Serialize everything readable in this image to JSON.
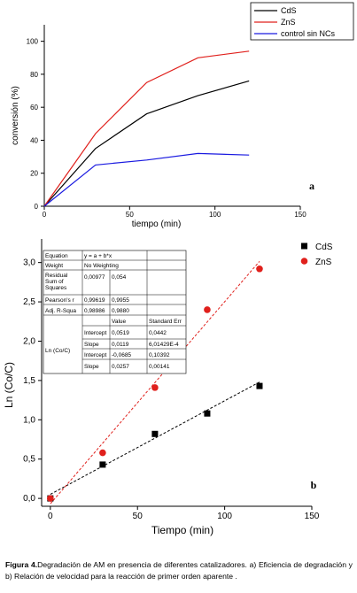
{
  "chart_data": [
    {
      "type": "line",
      "panel_label": "a",
      "xlabel": "tiempo (min)",
      "ylabel": "conversión (%)",
      "xlim": [
        0,
        150
      ],
      "ylim": [
        0,
        110
      ],
      "xticks": [
        0,
        50,
        100,
        150
      ],
      "yticks": [
        0,
        20,
        40,
        60,
        80,
        100
      ],
      "legend_position": "top-right",
      "series": [
        {
          "name": "CdS",
          "color": "#000000",
          "x": [
            0,
            30,
            60,
            90,
            120
          ],
          "y": [
            0,
            35,
            56,
            67,
            76
          ]
        },
        {
          "name": "ZnS",
          "color": "#e0201c",
          "x": [
            0,
            30,
            60,
            90,
            120
          ],
          "y": [
            0,
            44,
            75,
            90,
            94
          ]
        },
        {
          "name": "control sin NCs",
          "color": "#1a1ae0",
          "x": [
            0,
            30,
            60,
            90,
            120
          ],
          "y": [
            0,
            25,
            28,
            32,
            31
          ]
        }
      ]
    },
    {
      "type": "scatter",
      "panel_label": "b",
      "xlabel": "Tiempo (min)",
      "ylabel": "Ln (Co/C)",
      "xlim": [
        -5,
        150
      ],
      "ylim": [
        -0.1,
        3.3
      ],
      "xticks": [
        0,
        50,
        100,
        150
      ],
      "yticks": [
        "0,0",
        "0,5",
        "1,0",
        "1,5",
        "2,0",
        "2,5",
        "3,0"
      ],
      "ytick_values": [
        0,
        0.5,
        1.0,
        1.5,
        2.0,
        2.5,
        3.0
      ],
      "legend_position": "top-right",
      "series": [
        {
          "name": "CdS",
          "color": "#000000",
          "marker": "square",
          "x": [
            0,
            30,
            60,
            90,
            120
          ],
          "y": [
            0.0,
            0.43,
            0.82,
            1.08,
            1.43
          ]
        },
        {
          "name": "ZnS",
          "color": "#e0201c",
          "marker": "circle",
          "x": [
            0,
            30,
            60,
            90,
            120
          ],
          "y": [
            0.0,
            0.58,
            1.41,
            2.4,
            2.92
          ]
        }
      ],
      "fits": [
        {
          "series": "CdS",
          "intercept": 0.0519,
          "slope": 0.0119,
          "x": [
            0,
            120
          ],
          "color": "#000000"
        },
        {
          "series": "ZnS",
          "intercept": -0.0685,
          "slope": 0.0257,
          "x": [
            0,
            120
          ],
          "color": "#e0201c"
        }
      ],
      "fit_table": {
        "equation_label": "Equation",
        "equation": "y = a + b*x",
        "weight_label": "Weight",
        "weight": "No Weighting",
        "rss_label": [
          "Residual",
          "Sum of",
          "Squares"
        ],
        "rss": [
          "0,00977",
          "0,054"
        ],
        "pearson_label": "Pearson's r",
        "pearson": [
          "0,99619",
          "0,9955"
        ],
        "adjr_label": "Adj. R-Squa",
        "adjr": [
          "0,98986",
          "0,9880"
        ],
        "value_label": "Value",
        "stderr_label": "Standard Err",
        "group_label": "Ln (Co/C)",
        "rows": [
          {
            "param": "Intercept",
            "value": "0,0519",
            "err": "0,0442"
          },
          {
            "param": "Slope",
            "value": "0,0119",
            "err": "6,01429E-4"
          },
          {
            "param": "Intercept",
            "value": "-0,0685",
            "err": "0,10392"
          },
          {
            "param": "Slope",
            "value": "0,0257",
            "err": "0,00141"
          }
        ]
      }
    }
  ],
  "caption": {
    "label": "Figura 4.",
    "text": "Degradación de AM en presencia de diferentes catalizadores. a) Eficiencia de degradación y b) Relación de velocidad para la reacción de primer orden aparente ."
  }
}
